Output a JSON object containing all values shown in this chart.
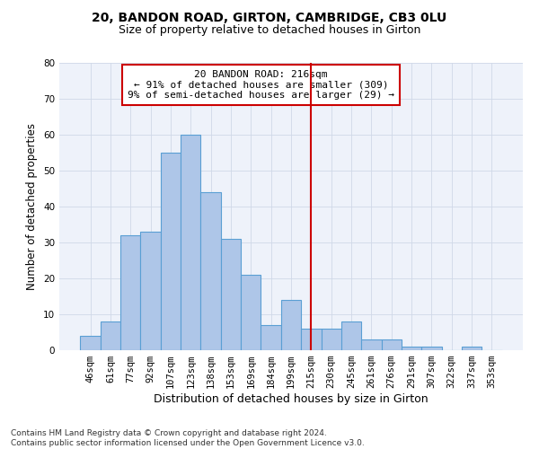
{
  "title1": "20, BANDON ROAD, GIRTON, CAMBRIDGE, CB3 0LU",
  "title2": "Size of property relative to detached houses in Girton",
  "xlabel": "Distribution of detached houses by size in Girton",
  "ylabel": "Number of detached properties",
  "categories": [
    "46sqm",
    "61sqm",
    "77sqm",
    "92sqm",
    "107sqm",
    "123sqm",
    "138sqm",
    "153sqm",
    "169sqm",
    "184sqm",
    "199sqm",
    "215sqm",
    "230sqm",
    "245sqm",
    "261sqm",
    "276sqm",
    "291sqm",
    "307sqm",
    "322sqm",
    "337sqm",
    "353sqm"
  ],
  "values": [
    4,
    8,
    32,
    33,
    55,
    60,
    44,
    31,
    21,
    7,
    14,
    6,
    6,
    8,
    3,
    3,
    1,
    1,
    0,
    1,
    0
  ],
  "bar_color": "#aec6e8",
  "bar_edge_color": "#5a9fd4",
  "vline_x_index": 11,
  "vline_color": "#cc0000",
  "annotation_line1": "20 BANDON ROAD: 216sqm",
  "annotation_line2": "← 91% of detached houses are smaller (309)",
  "annotation_line3": "9% of semi-detached houses are larger (29) →",
  "annotation_box_color": "#ffffff",
  "annotation_box_edge_color": "#cc0000",
  "ylim": [
    0,
    80
  ],
  "yticks": [
    0,
    10,
    20,
    30,
    40,
    50,
    60,
    70,
    80
  ],
  "grid_color": "#d0d8e8",
  "background_color": "#eef2fa",
  "footer": "Contains HM Land Registry data © Crown copyright and database right 2024.\nContains public sector information licensed under the Open Government Licence v3.0.",
  "title_fontsize": 10,
  "subtitle_fontsize": 9,
  "xlabel_fontsize": 9,
  "ylabel_fontsize": 8.5,
  "tick_fontsize": 7.5,
  "annotation_fontsize": 8,
  "footer_fontsize": 6.5
}
